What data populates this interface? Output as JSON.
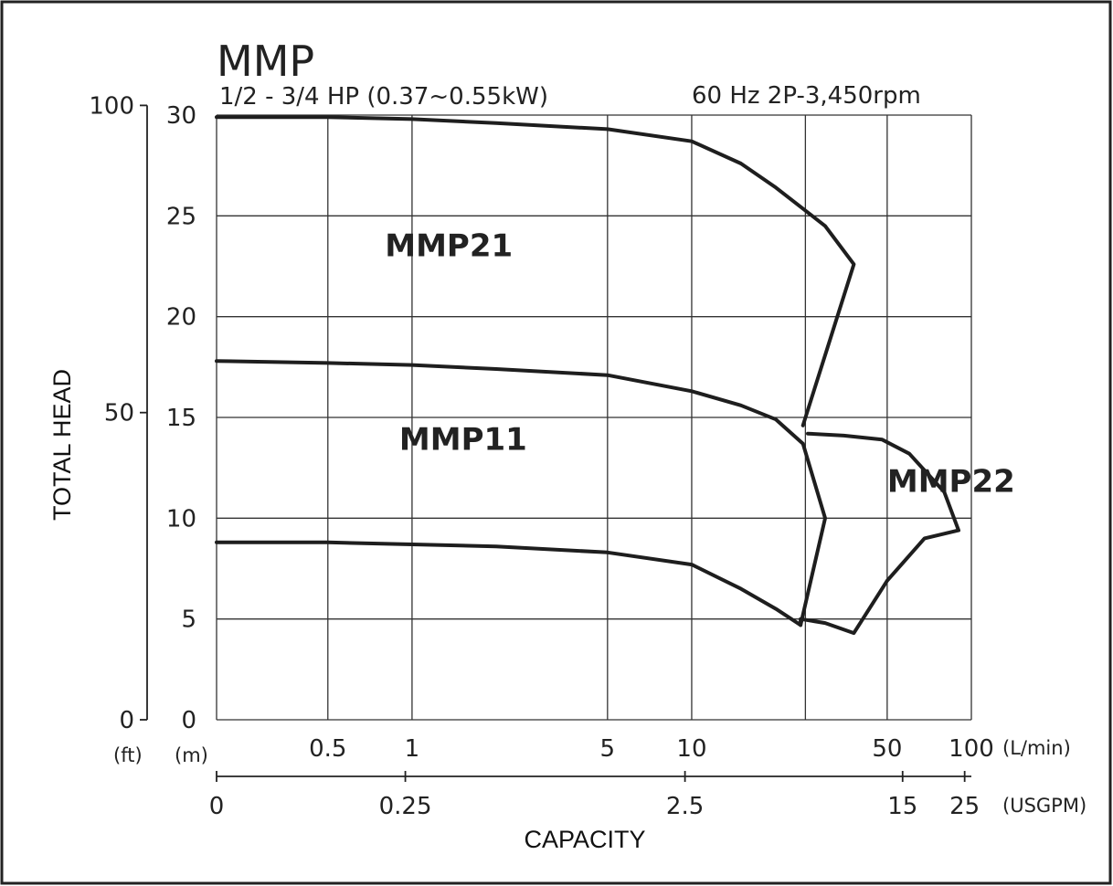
{
  "chart_data": {
    "type": "line",
    "title": "MMP",
    "subtitle": "1/2 - 3/4 HP (0.37~0.55kW)",
    "spec": "60 Hz 2P-3,450rpm",
    "xlabel": "CAPACITY",
    "ylabel": "TOTAL HEAD",
    "x_scale": "log",
    "x_unit_lmin": "(L/min)",
    "x_unit_usgpm": "(USGPM)",
    "y_unit_m": "(m)",
    "y_unit_ft": "(ft)",
    "xlim_lmin": [
      0,
      100
    ],
    "ylim_m": [
      0,
      30
    ],
    "x_ticks_lmin": [
      {
        "value": 0.5,
        "label": "0.5"
      },
      {
        "value": 1,
        "label": "1"
      },
      {
        "value": 5,
        "label": "5"
      },
      {
        "value": 10,
        "label": "10"
      },
      {
        "value": 50,
        "label": "50"
      },
      {
        "value": 100,
        "label": "100"
      }
    ],
    "x_ticks_usgpm": [
      {
        "value": 0,
        "label": "0"
      },
      {
        "value": 0.25,
        "label": "0.25"
      },
      {
        "value": 2.5,
        "label": "2.5"
      },
      {
        "value": 15,
        "label": "15"
      },
      {
        "value": 25,
        "label": "25"
      }
    ],
    "y_ticks_m": [
      {
        "value": 0,
        "label": "0"
      },
      {
        "value": 5,
        "label": "5"
      },
      {
        "value": 10,
        "label": "10"
      },
      {
        "value": 15,
        "label": "15"
      },
      {
        "value": 20,
        "label": "20"
      },
      {
        "value": 25,
        "label": "25"
      },
      {
        "value": 30,
        "label": "30"
      }
    ],
    "y_ticks_ft": [
      {
        "value": 0,
        "label": "0"
      },
      {
        "value": 50,
        "label": "50"
      },
      {
        "value": 100,
        "label": "100"
      }
    ],
    "grid": true,
    "series": [
      {
        "name": "MMP21",
        "label_at": {
          "x": 0.8,
          "y": 23
        },
        "points": [
          [
            0.2,
            29.9
          ],
          [
            0.5,
            29.9
          ],
          [
            1,
            29.8
          ],
          [
            2,
            29.6
          ],
          [
            5,
            29.3
          ],
          [
            10,
            28.7
          ],
          [
            15,
            27.6
          ],
          [
            20,
            26.4
          ],
          [
            30,
            24.5
          ],
          [
            38,
            22.6
          ],
          [
            25,
            14.6
          ]
        ]
      },
      {
        "name": "MMP11",
        "label_at": {
          "x": 0.9,
          "y": 13.4
        },
        "points": [
          [
            0.2,
            17.8
          ],
          [
            0.5,
            17.7
          ],
          [
            1,
            17.6
          ],
          [
            2,
            17.4
          ],
          [
            5,
            17.1
          ],
          [
            10,
            16.3
          ],
          [
            15,
            15.6
          ],
          [
            20,
            14.9
          ],
          [
            25,
            13.7
          ],
          [
            30,
            10.0
          ],
          [
            24.5,
            4.7
          ]
        ]
      },
      {
        "name": "MMP22",
        "label_at": {
          "x": 50,
          "y": 11.3
        },
        "points": [
          [
            0.2,
            8.8
          ],
          [
            0.5,
            8.8
          ],
          [
            1,
            8.7
          ],
          [
            2,
            8.6
          ],
          [
            5,
            8.3
          ],
          [
            10,
            7.7
          ],
          [
            15,
            6.5
          ],
          [
            20,
            5.5
          ],
          [
            24.5,
            4.7
          ],
          [
            24.5,
            5.0
          ],
          [
            30,
            4.8
          ],
          [
            38,
            4.3
          ],
          [
            50,
            6.9
          ],
          [
            68,
            9.0
          ],
          [
            90,
            9.4
          ],
          [
            80,
            11.3
          ],
          [
            60,
            13.2
          ],
          [
            48,
            13.9
          ],
          [
            35,
            14.1
          ],
          [
            26,
            14.2
          ]
        ]
      }
    ]
  }
}
